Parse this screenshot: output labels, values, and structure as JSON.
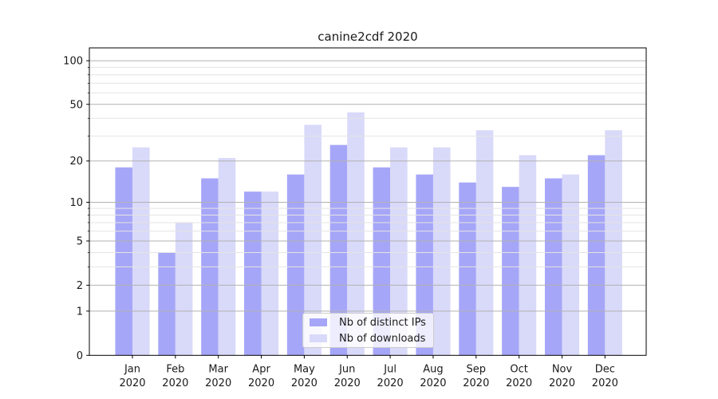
{
  "chart_data": {
    "type": "bar",
    "title": "canine2cdf 2020",
    "categories": [
      "Jan",
      "Feb",
      "Mar",
      "Apr",
      "May",
      "Jun",
      "Jul",
      "Aug",
      "Sep",
      "Oct",
      "Nov",
      "Dec"
    ],
    "category_year": "2020",
    "series": [
      {
        "name": "Nb of distinct IPs",
        "color": "#a6a6f8",
        "values": [
          18,
          4,
          15,
          12,
          16,
          26,
          18,
          16,
          14,
          13,
          15,
          22
        ]
      },
      {
        "name": "Nb of downloads",
        "color": "#d9d9f9",
        "values": [
          25,
          7,
          21,
          12,
          36,
          44,
          25,
          25,
          33,
          22,
          16,
          33
        ]
      }
    ],
    "xlabel": "",
    "ylabel": "",
    "yscale": "log1p",
    "ylim": [
      0,
      122
    ],
    "y_major_ticks": [
      0,
      1,
      2,
      5,
      10,
      20,
      50,
      100
    ],
    "y_minor_gridlines": [
      3,
      4,
      6,
      7,
      8,
      9,
      30,
      40,
      60,
      70,
      80,
      90
    ],
    "grid": "horizontal major and minor, drawn above bars",
    "legend_position": "lower center",
    "colors": {
      "grid_major": "#b2b2b2",
      "grid_minor": "#e4e4e4",
      "axis": "#000000",
      "text": "#1a1a1a",
      "legend_border": "#cccccc"
    }
  }
}
